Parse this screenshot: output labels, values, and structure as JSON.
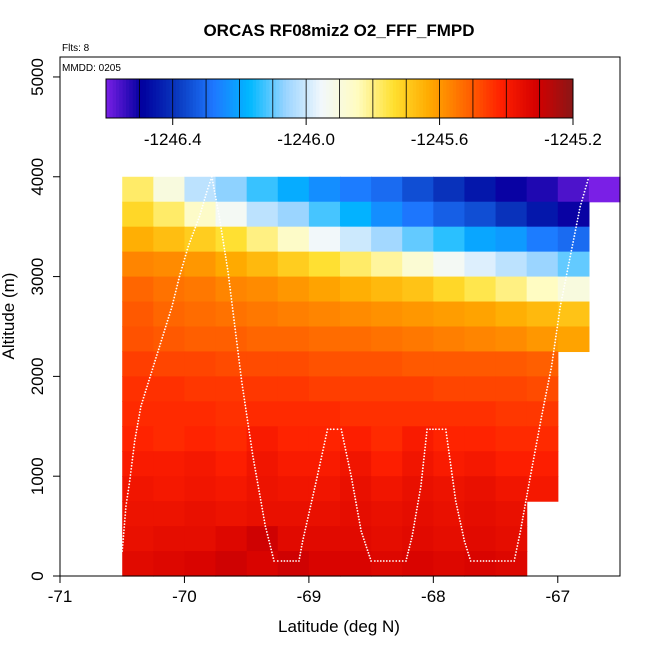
{
  "chart_data": {
    "type": "heatmap",
    "title": "ORCAS RF08miz2 O2_FFF_FMPD",
    "xlabel": "Latitude (deg N)",
    "ylabel": "Altitude (m)",
    "xlim": [
      -71,
      -66.5
    ],
    "ylim": [
      0,
      5200
    ],
    "x_ticks": [
      -71,
      -70,
      -69,
      -68,
      -67
    ],
    "x_tick_labels": [
      "-71",
      "-70",
      "-69",
      "-68",
      "-67"
    ],
    "y_ticks": [
      0,
      1000,
      2000,
      3000,
      4000,
      5000
    ],
    "y_tick_labels": [
      "0",
      "1000",
      "2000",
      "3000",
      "4000",
      "5000"
    ],
    "note_flights": "Flts: 8",
    "note_mmdd": "MMDD: 0205",
    "colorbar": {
      "range": [
        -1246.6,
        -1245.2
      ],
      "ticks": [
        -1246.4,
        -1246.0,
        -1245.6,
        -1245.2
      ],
      "tick_labels": [
        "-1246.4",
        "-1246.0",
        "-1245.6",
        "-1245.2"
      ],
      "colors": [
        "#7a1fe6",
        "#00009e",
        "#0a3ac0",
        "#1e78ff",
        "#00b8ff",
        "#9ad4ff",
        "#f2f8fc",
        "#fffcc0",
        "#ffe030",
        "#ffaa00",
        "#ff6800",
        "#ff2000",
        "#d40000",
        "#8a1616"
      ]
    },
    "grid": {
      "lat_start": -70.5,
      "lat_step": 0.25,
      "alt_step": 250,
      "lat_labels": [
        "-70.5",
        "-70.25",
        "-70.0",
        "-69.75",
        "-69.5",
        "-69.25",
        "-69.0",
        "-68.75",
        "-68.5",
        "-68.25",
        "-68.0",
        "-67.75",
        "-67.5",
        "-67.25",
        "-67.0",
        "-66.75"
      ],
      "rows": [
        {
          "alt": 3750,
          "values": [
            -1245.78,
            -1245.9,
            -1246.02,
            -1246.07,
            -1246.13,
            -1246.19,
            -1246.24,
            -1246.27,
            -1246.3,
            -1246.35,
            -1246.4,
            -1246.45,
            -1246.5,
            -1246.52,
            -1246.56,
            -1246.62
          ]
        },
        {
          "alt": 3500,
          "values": [
            -1245.72,
            -1245.78,
            -1245.86,
            -1245.94,
            -1246.02,
            -1246.06,
            -1246.12,
            -1246.18,
            -1246.24,
            -1246.28,
            -1246.32,
            -1246.35,
            -1246.4,
            -1246.45,
            -1246.5,
            null
          ]
        },
        {
          "alt": 3250,
          "values": [
            -1245.64,
            -1245.67,
            -1245.7,
            -1245.74,
            -1245.8,
            -1245.86,
            -1245.95,
            -1246.0,
            -1246.05,
            -1246.1,
            -1246.14,
            -1246.2,
            -1246.22,
            -1246.27,
            -1246.3,
            null
          ]
        },
        {
          "alt": 3000,
          "values": [
            -1245.57,
            -1245.58,
            -1245.6,
            -1245.63,
            -1245.66,
            -1245.7,
            -1245.74,
            -1245.78,
            -1245.82,
            -1245.88,
            -1245.94,
            -1245.98,
            -1246.02,
            -1246.06,
            -1246.1,
            null
          ]
        },
        {
          "alt": 2750,
          "values": [
            -1245.52,
            -1245.54,
            -1245.55,
            -1245.57,
            -1245.58,
            -1245.6,
            -1245.62,
            -1245.64,
            -1245.66,
            -1245.68,
            -1245.72,
            -1245.76,
            -1245.8,
            -1245.85,
            -1245.9,
            null
          ]
        },
        {
          "alt": 2500,
          "values": [
            -1245.5,
            -1245.52,
            -1245.53,
            -1245.54,
            -1245.55,
            -1245.56,
            -1245.57,
            -1245.58,
            -1245.59,
            -1245.6,
            -1245.61,
            -1245.62,
            -1245.64,
            -1245.66,
            -1245.68,
            null
          ]
        },
        {
          "alt": 2250,
          "values": [
            -1245.49,
            -1245.5,
            -1245.51,
            -1245.51,
            -1245.52,
            -1245.52,
            -1245.53,
            -1245.53,
            -1245.54,
            -1245.55,
            -1245.56,
            -1245.57,
            -1245.58,
            -1245.6,
            -1245.62,
            null
          ]
        },
        {
          "alt": 2000,
          "values": [
            -1245.46,
            -1245.47,
            -1245.47,
            -1245.48,
            -1245.48,
            -1245.48,
            -1245.49,
            -1245.49,
            -1245.49,
            -1245.5,
            -1245.5,
            -1245.5,
            -1245.5,
            -1245.51,
            null,
            null
          ]
        },
        {
          "alt": 1750,
          "values": [
            -1245.44,
            -1245.44,
            -1245.45,
            -1245.45,
            -1245.45,
            -1245.45,
            -1245.46,
            -1245.46,
            -1245.46,
            -1245.46,
            -1245.47,
            -1245.47,
            -1245.47,
            -1245.48,
            null,
            null
          ]
        },
        {
          "alt": 1500,
          "values": [
            -1245.43,
            -1245.43,
            -1245.43,
            -1245.44,
            -1245.43,
            -1245.43,
            -1245.43,
            -1245.44,
            -1245.44,
            -1245.44,
            -1245.44,
            -1245.44,
            -1245.45,
            -1245.45,
            null,
            null
          ]
        },
        {
          "alt": 1250,
          "values": [
            -1245.42,
            -1245.43,
            -1245.42,
            -1245.43,
            -1245.4,
            -1245.42,
            -1245.42,
            -1245.41,
            -1245.43,
            -1245.4,
            -1245.42,
            -1245.42,
            -1245.43,
            -1245.43,
            null,
            null
          ]
        },
        {
          "alt": 1000,
          "values": [
            -1245.4,
            -1245.4,
            -1245.39,
            -1245.41,
            -1245.38,
            -1245.4,
            -1245.4,
            -1245.38,
            -1245.41,
            -1245.38,
            -1245.4,
            -1245.39,
            -1245.41,
            -1245.41,
            null,
            null
          ]
        },
        {
          "alt": 750,
          "values": [
            -1245.38,
            -1245.39,
            -1245.38,
            -1245.39,
            -1245.37,
            -1245.38,
            -1245.38,
            -1245.36,
            -1245.38,
            -1245.36,
            -1245.37,
            -1245.36,
            -1245.38,
            -1245.39,
            null,
            null
          ]
        },
        {
          "alt": 500,
          "values": [
            -1245.37,
            -1245.37,
            -1245.36,
            -1245.37,
            -1245.36,
            -1245.36,
            -1245.36,
            -1245.35,
            -1245.36,
            -1245.35,
            -1245.36,
            -1245.35,
            -1245.36,
            null,
            null,
            null
          ]
        },
        {
          "alt": 250,
          "values": [
            -1245.36,
            -1245.35,
            -1245.35,
            -1245.33,
            -1245.3,
            -1245.34,
            -1245.34,
            -1245.34,
            -1245.35,
            -1245.34,
            -1245.35,
            -1245.34,
            -1245.35,
            null,
            null,
            null
          ]
        },
        {
          "alt": 0,
          "values": [
            -1245.34,
            -1245.33,
            -1245.32,
            -1245.3,
            -1245.32,
            -1245.3,
            -1245.32,
            -1245.32,
            -1245.33,
            -1245.32,
            -1245.33,
            -1245.32,
            -1245.33,
            null,
            null,
            null
          ]
        }
      ]
    },
    "flight_track": {
      "lat": [
        -70.5,
        -70.47,
        -70.44,
        -70.4,
        -70.35,
        -70.2,
        -70.1,
        -70.04,
        -69.97,
        -69.88,
        -69.82,
        -69.78,
        -69.72,
        -69.65,
        -69.58,
        -69.54,
        -69.45,
        -69.35,
        -69.28,
        -69.22,
        -69.15,
        -69.08,
        -69.05,
        -68.95,
        -68.85,
        -68.8,
        -68.74,
        -68.66,
        -68.58,
        -68.5,
        -68.47,
        -68.35,
        -68.22,
        -68.17,
        -68.1,
        -68.05,
        -67.98,
        -67.9,
        -67.87,
        -67.82,
        -67.75,
        -67.7,
        -67.62,
        -67.55,
        -67.45,
        -67.35,
        -67.3,
        -67.22,
        -67.13,
        -67.05,
        -66.98,
        -66.9,
        -66.82,
        -66.75
      ],
      "alt": [
        250,
        700,
        950,
        1350,
        1700,
        2300,
        2700,
        3000,
        3300,
        3600,
        3850,
        4000,
        3600,
        3050,
        2350,
        1950,
        1200,
        500,
        150,
        150,
        150,
        150,
        350,
        900,
        1470,
        1470,
        1470,
        1000,
        450,
        150,
        150,
        150,
        150,
        400,
        900,
        1470,
        1470,
        1470,
        1200,
        750,
        350,
        150,
        150,
        150,
        150,
        150,
        450,
        1000,
        1600,
        2100,
        2700,
        3200,
        3700,
        4000
      ]
    }
  }
}
